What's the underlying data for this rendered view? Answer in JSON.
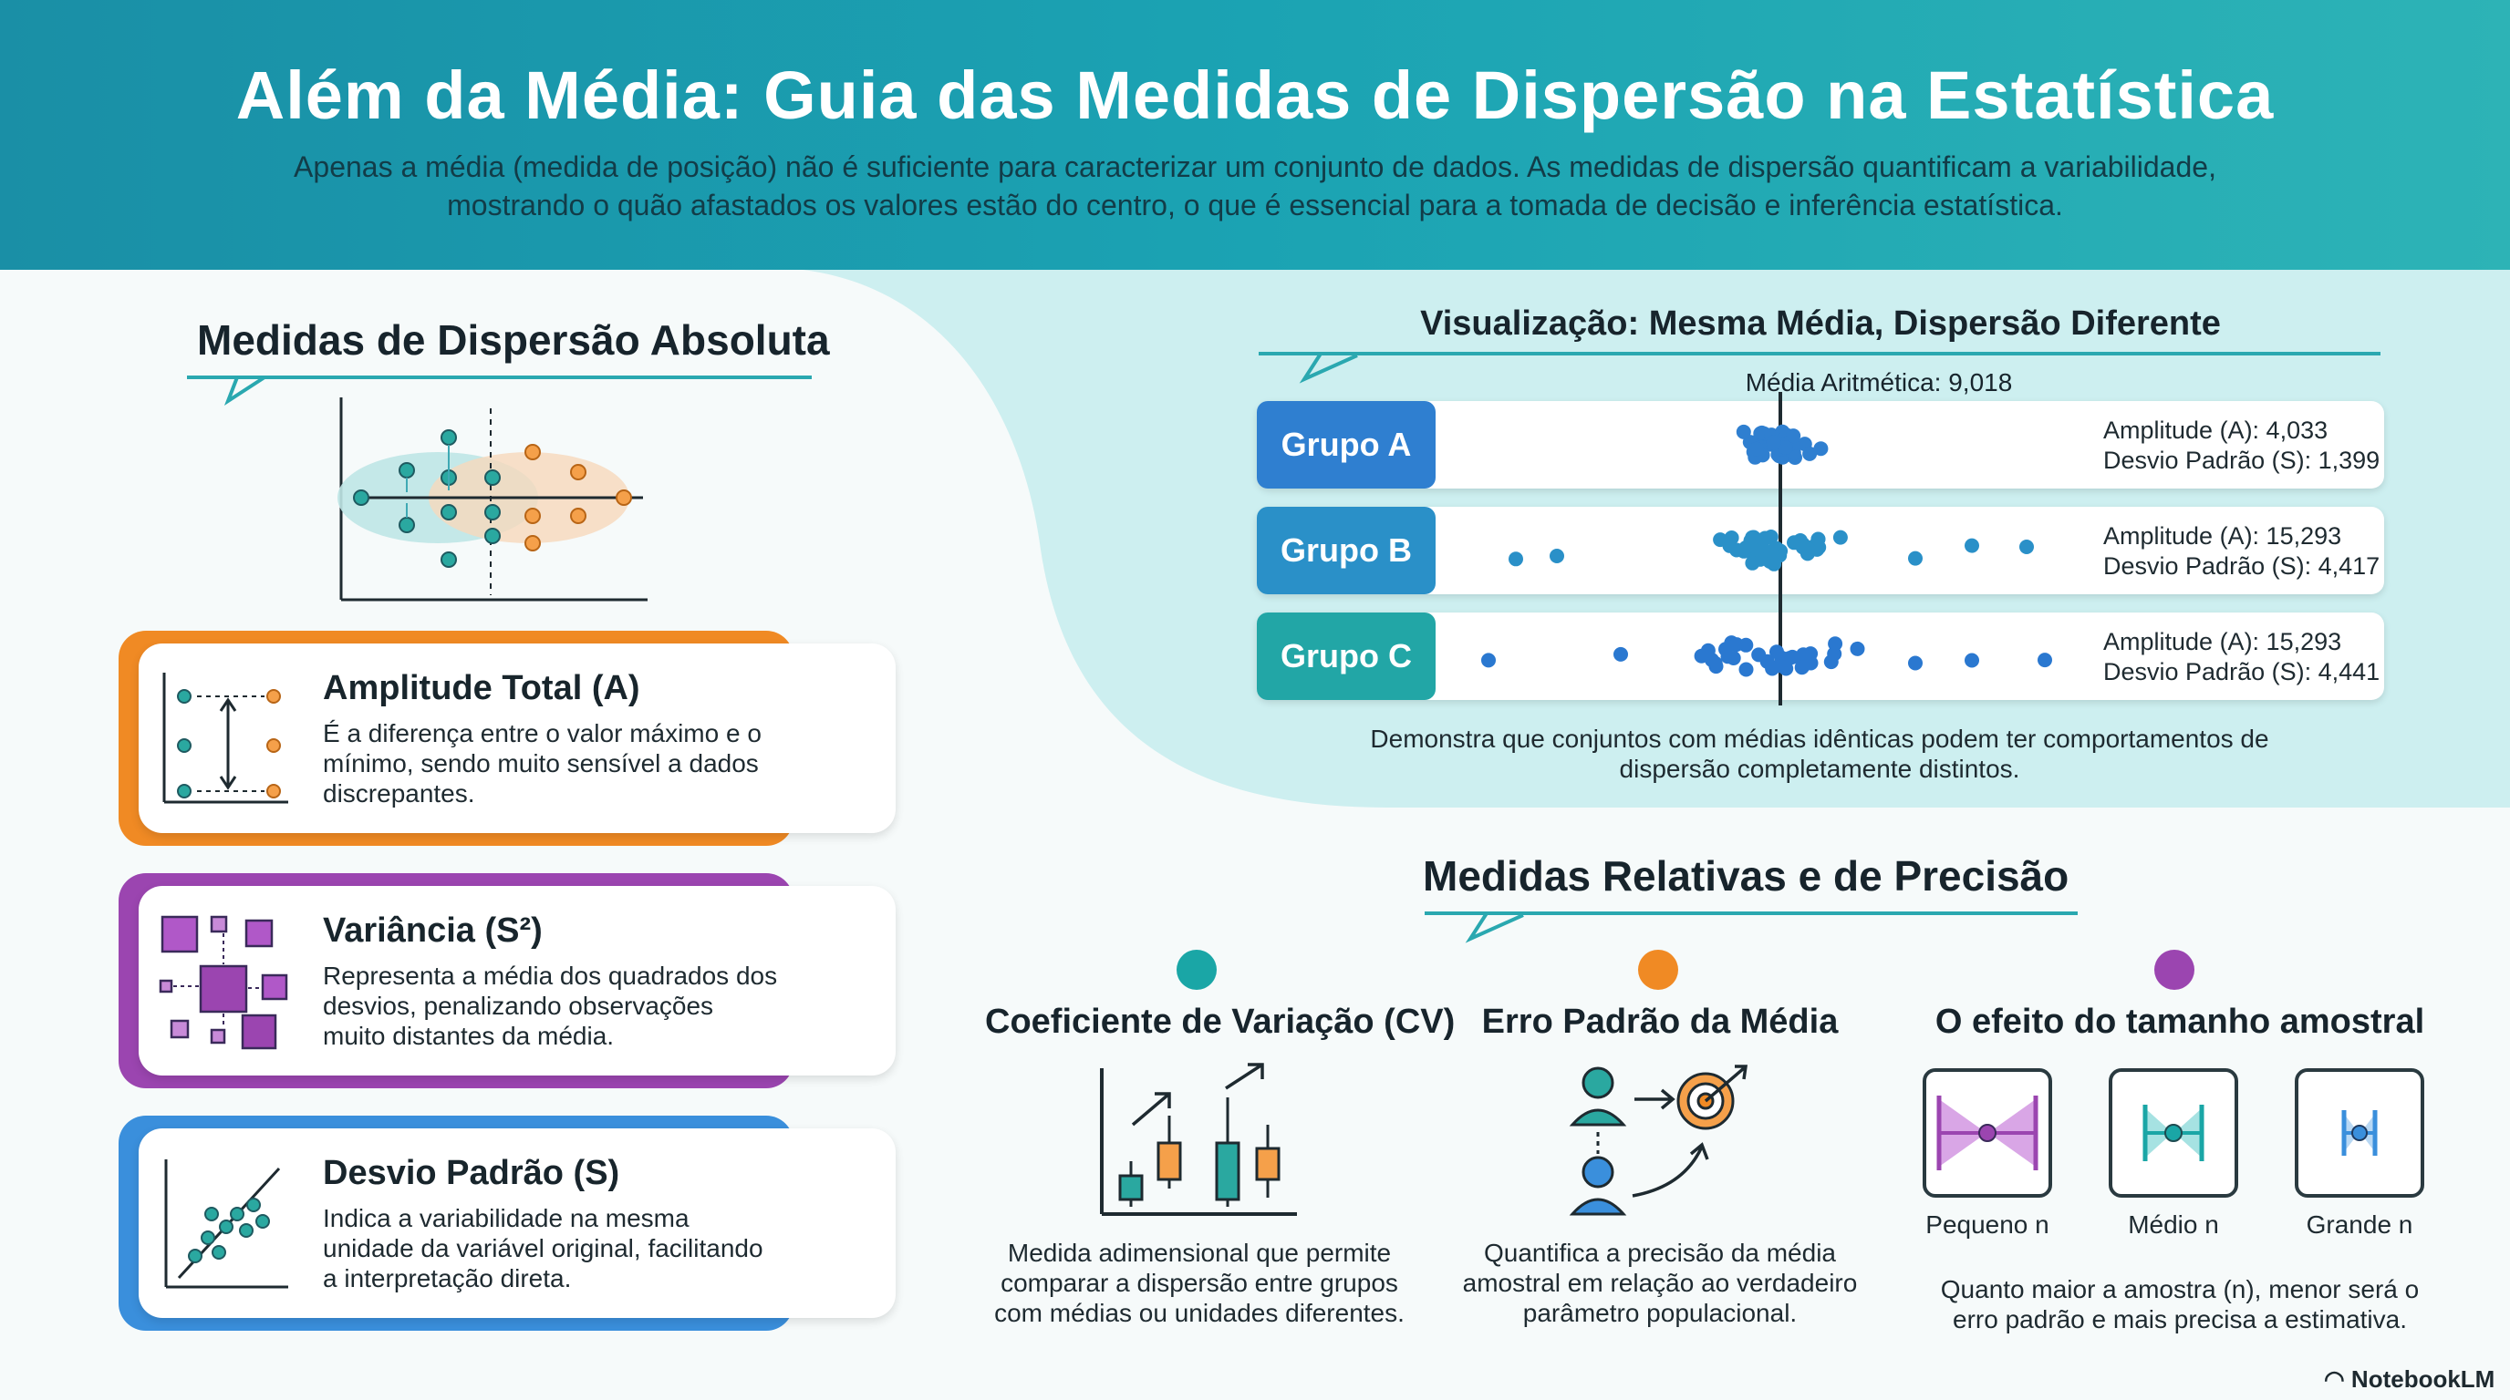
{
  "header": {
    "title": "Além da Média: Guia das Medidas de Dispersão na Estatística",
    "subtitle": "Apenas a média (medida de posição) não é suficiente para caracterizar um conjunto de dados. As medidas de dispersão quantificam a variabilidade, mostrando o quão afastados os valores estão do centro, o que é essencial para a tomada de decisão e inferência estatística."
  },
  "absolute": {
    "title": "Medidas de Dispersão Absoluta",
    "cards": [
      {
        "title": "Amplitude Total (A)",
        "text": "É a diferença entre o valor máximo e o mínimo, sendo muito sensível a dados discrepantes.",
        "color": "#f08a24"
      },
      {
        "title": "Variância (S²)",
        "text": "Representa a média dos quadrados dos desvios, penalizando observações muito distantes da média.",
        "color": "#9b45b0"
      },
      {
        "title": "Desvio Padrão (S)",
        "text": "Indica a variabilidade na mesma unidade da variável original, facilitando a interpretação direta.",
        "color": "#3a8fdc"
      }
    ]
  },
  "visual": {
    "title": "Visualização: Mesma Média, Dispersão Diferente",
    "mean_label": "Média Aritmética: 9,018",
    "caption": "Demonstra que conjuntos com médias idênticas podem ter comportamentos de dispersão completamente distintos.",
    "groups": [
      {
        "name": "Grupo A",
        "range": "Amplitude (A): 4,033",
        "sd": "Desvio Padrão (S): 1,399",
        "color": "#2f7fd0"
      },
      {
        "name": "Grupo B",
        "range": "Amplitude (A): 15,293",
        "sd": "Desvio Padrão (S): 4,417",
        "color": "#2a90c8"
      },
      {
        "name": "Grupo C",
        "range": "Amplitude (A): 15,293",
        "sd": "Desvio Padrão (S): 4,441",
        "color": "#22a6a6"
      }
    ]
  },
  "relative": {
    "title": "Medidas Relativas e de Precisão",
    "items": [
      {
        "title": "Coeficiente de Variação (CV)",
        "text": "Medida adimensional que permite comparar a dispersão entre grupos com médias ou unidades diferentes.",
        "color": "#1aa6a6"
      },
      {
        "title": "Erro Padrão da Média",
        "text": "Quantifica a precisão da média amostral em relação ao verdadeiro parâmetro populacional.",
        "color": "#f08a24"
      },
      {
        "title": "O efeito do tamanho amostral",
        "text": "Quanto maior a amostra (n), menor será o erro padrão e mais precisa a estimativa.",
        "color": "#9b45b0"
      }
    ],
    "sizes": [
      "Pequeno n",
      "Médio n",
      "Grande n"
    ]
  },
  "footer": {
    "brand": "NotebookLM"
  }
}
